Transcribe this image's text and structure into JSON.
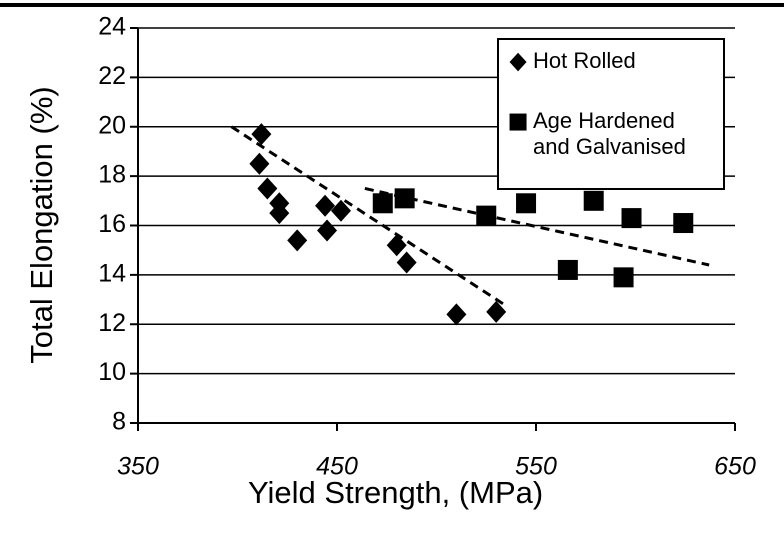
{
  "chart_data": {
    "type": "scatter",
    "xlabel": "Yield Strength, (MPa)",
    "ylabel": "Total Elongation (%)",
    "xlim": [
      350,
      650
    ],
    "xticks": [
      350,
      450,
      550,
      650
    ],
    "ylim": [
      8,
      24
    ],
    "yticks": [
      8,
      10,
      12,
      14,
      16,
      18,
      20,
      22,
      24
    ],
    "grid": true,
    "series": [
      {
        "name": "Hot Rolled",
        "color": "#000000",
        "marker": "diamond",
        "x": [
          412,
          411,
          415,
          421,
          421,
          430,
          444,
          452,
          445,
          480,
          485,
          510,
          530
        ],
        "values": [
          19.7,
          18.5,
          17.5,
          16.9,
          16.5,
          15.4,
          16.8,
          16.6,
          15.8,
          15.2,
          14.5,
          12.4,
          12.5
        ]
      },
      {
        "name": "Age Hardened and Galvanised",
        "color": "#000000",
        "marker": "square",
        "x": [
          473,
          484,
          525,
          545,
          579,
          566,
          598,
          594,
          624
        ],
        "values": [
          16.9,
          17.1,
          16.4,
          16.9,
          17.0,
          14.2,
          16.3,
          13.9,
          16.1
        ]
      }
    ],
    "trendlines": [
      {
        "x": [
          397,
          534
        ],
        "values": [
          20.0,
          12.8
        ]
      },
      {
        "x": [
          464,
          637
        ],
        "values": [
          17.5,
          14.4
        ]
      }
    ]
  }
}
